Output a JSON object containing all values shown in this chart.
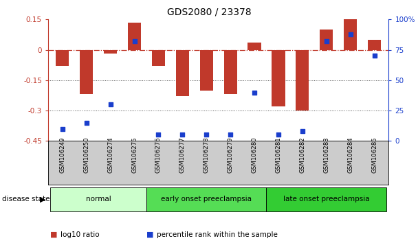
{
  "title": "GDS2080 / 23378",
  "samples": [
    "GSM106249",
    "GSM106250",
    "GSM106274",
    "GSM106275",
    "GSM106276",
    "GSM106277",
    "GSM106278",
    "GSM106279",
    "GSM106280",
    "GSM106281",
    "GSM106282",
    "GSM106283",
    "GSM106284",
    "GSM106285"
  ],
  "log10_ratio": [
    -0.08,
    -0.22,
    -0.02,
    0.135,
    -0.08,
    -0.23,
    -0.2,
    -0.22,
    0.035,
    -0.28,
    -0.3,
    0.1,
    0.15,
    0.05
  ],
  "percentile_rank": [
    10,
    15,
    30,
    82,
    5,
    5,
    5,
    5,
    40,
    5,
    8,
    82,
    88,
    70
  ],
  "bar_color": "#c0392b",
  "dot_color": "#1a3ecc",
  "ylim_left": [
    -0.45,
    0.15
  ],
  "ylim_right": [
    0,
    100
  ],
  "yticks_left": [
    -0.45,
    -0.3,
    -0.15,
    0.0,
    0.15
  ],
  "ytick_labels_left": [
    "-0.45",
    "-0.3",
    "-0.15",
    "0",
    "0.15"
  ],
  "yticks_right": [
    0,
    25,
    50,
    75,
    100
  ],
  "ytick_labels_right": [
    "0",
    "25",
    "50",
    "75",
    "100%"
  ],
  "groups": [
    {
      "label": "normal",
      "start": 0,
      "end": 4,
      "color": "#ccffcc"
    },
    {
      "label": "early onset preeclampsia",
      "start": 4,
      "end": 9,
      "color": "#55dd55"
    },
    {
      "label": "late onset preeclampsia",
      "start": 9,
      "end": 14,
      "color": "#33cc33"
    }
  ],
  "disease_state_label": "disease state",
  "legend_items": [
    {
      "label": "log10 ratio",
      "color": "#c0392b"
    },
    {
      "label": "percentile rank within the sample",
      "color": "#1a3ecc"
    }
  ],
  "hline_zero_color": "#c0392b",
  "hline_dotted_color": "#555555",
  "bar_width": 0.55,
  "background_color": "#ffffff"
}
